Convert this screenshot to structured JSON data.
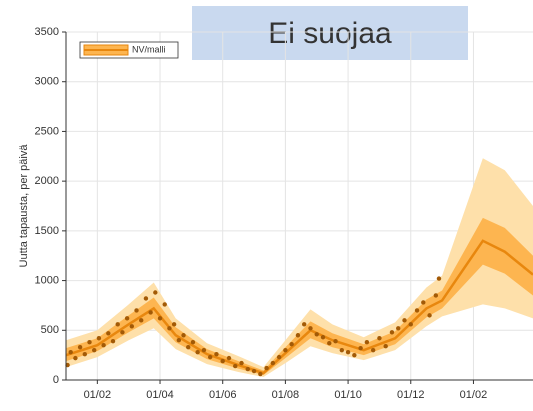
{
  "chart_data": {
    "type": "line",
    "title": "Ei suojaa",
    "ylabel": "Uutta tapausta, per päivä",
    "x": [
      0,
      1,
      2,
      2.8,
      3.5,
      4.5,
      5.5,
      6.3,
      7,
      7.8,
      8.5,
      9.5,
      10.5,
      11.5,
      12,
      13.3,
      14,
      14.9
    ],
    "series": [
      {
        "name": "NV/malli",
        "color": "#e8870e",
        "values": [
          250,
          350,
          560,
          720,
          450,
          260,
          150,
          70,
          270,
          500,
          400,
          300,
          420,
          720,
          800,
          1400,
          1290,
          1060
        ]
      }
    ],
    "bands": [
      {
        "color": "#fee0aa",
        "lower": [
          130,
          230,
          400,
          520,
          310,
          160,
          80,
          30,
          170,
          340,
          270,
          200,
          300,
          540,
          640,
          760,
          720,
          620
        ],
        "upper": [
          400,
          500,
          760,
          980,
          620,
          370,
          240,
          130,
          400,
          710,
          560,
          430,
          580,
          930,
          1050,
          2230,
          2110,
          1750
        ]
      },
      {
        "color": "#fdb550",
        "lower": [
          190,
          290,
          480,
          620,
          380,
          210,
          115,
          50,
          220,
          420,
          330,
          250,
          360,
          630,
          720,
          1160,
          1070,
          850
        ],
        "upper": [
          320,
          420,
          650,
          830,
          530,
          310,
          190,
          95,
          330,
          590,
          470,
          360,
          490,
          810,
          900,
          1630,
          1530,
          1250
        ]
      }
    ],
    "points": {
      "color": "#a35a06",
      "x": [
        0.05,
        0.15,
        0.3,
        0.45,
        0.6,
        0.75,
        0.9,
        1.05,
        1.2,
        1.35,
        1.5,
        1.65,
        1.8,
        1.95,
        2.1,
        2.25,
        2.4,
        2.55,
        2.7,
        2.85,
        3.0,
        3.15,
        3.3,
        3.45,
        3.6,
        3.75,
        3.9,
        4.05,
        4.2,
        4.4,
        4.6,
        4.8,
        5.0,
        5.2,
        5.4,
        5.6,
        5.8,
        6.0,
        6.2,
        6.4,
        6.6,
        6.8,
        7.0,
        7.2,
        7.4,
        7.6,
        7.8,
        8.0,
        8.2,
        8.4,
        8.6,
        8.8,
        9.0,
        9.2,
        9.4,
        9.6,
        9.8,
        10.0,
        10.2,
        10.4,
        10.6,
        10.8,
        11.0,
        11.2,
        11.4,
        11.6,
        11.8,
        11.9
      ],
      "values": [
        150,
        280,
        220,
        330,
        260,
        380,
        300,
        420,
        350,
        470,
        390,
        560,
        480,
        620,
        540,
        700,
        600,
        820,
        680,
        880,
        620,
        760,
        520,
        560,
        400,
        450,
        330,
        380,
        280,
        300,
        230,
        260,
        190,
        220,
        140,
        170,
        110,
        90,
        60,
        120,
        170,
        230,
        300,
        360,
        450,
        560,
        520,
        460,
        430,
        370,
        390,
        300,
        280,
        250,
        320,
        380,
        300,
        420,
        340,
        480,
        520,
        600,
        560,
        700,
        780,
        650,
        850,
        1020
      ]
    },
    "xlim": [
      0,
      14.9
    ],
    "xticks": [
      {
        "value": 1,
        "label": "01/02"
      },
      {
        "value": 3,
        "label": "01/04"
      },
      {
        "value": 5,
        "label": "01/06"
      },
      {
        "value": 7,
        "label": "01/08"
      },
      {
        "value": 9,
        "label": "01/10"
      },
      {
        "value": 11,
        "label": "01/12"
      },
      {
        "value": 13,
        "label": "01/02"
      }
    ],
    "ylim": [
      0,
      3500
    ],
    "yticks": [
      0,
      500,
      1000,
      1500,
      2000,
      2500,
      3000,
      3500
    ],
    "grid": true
  }
}
